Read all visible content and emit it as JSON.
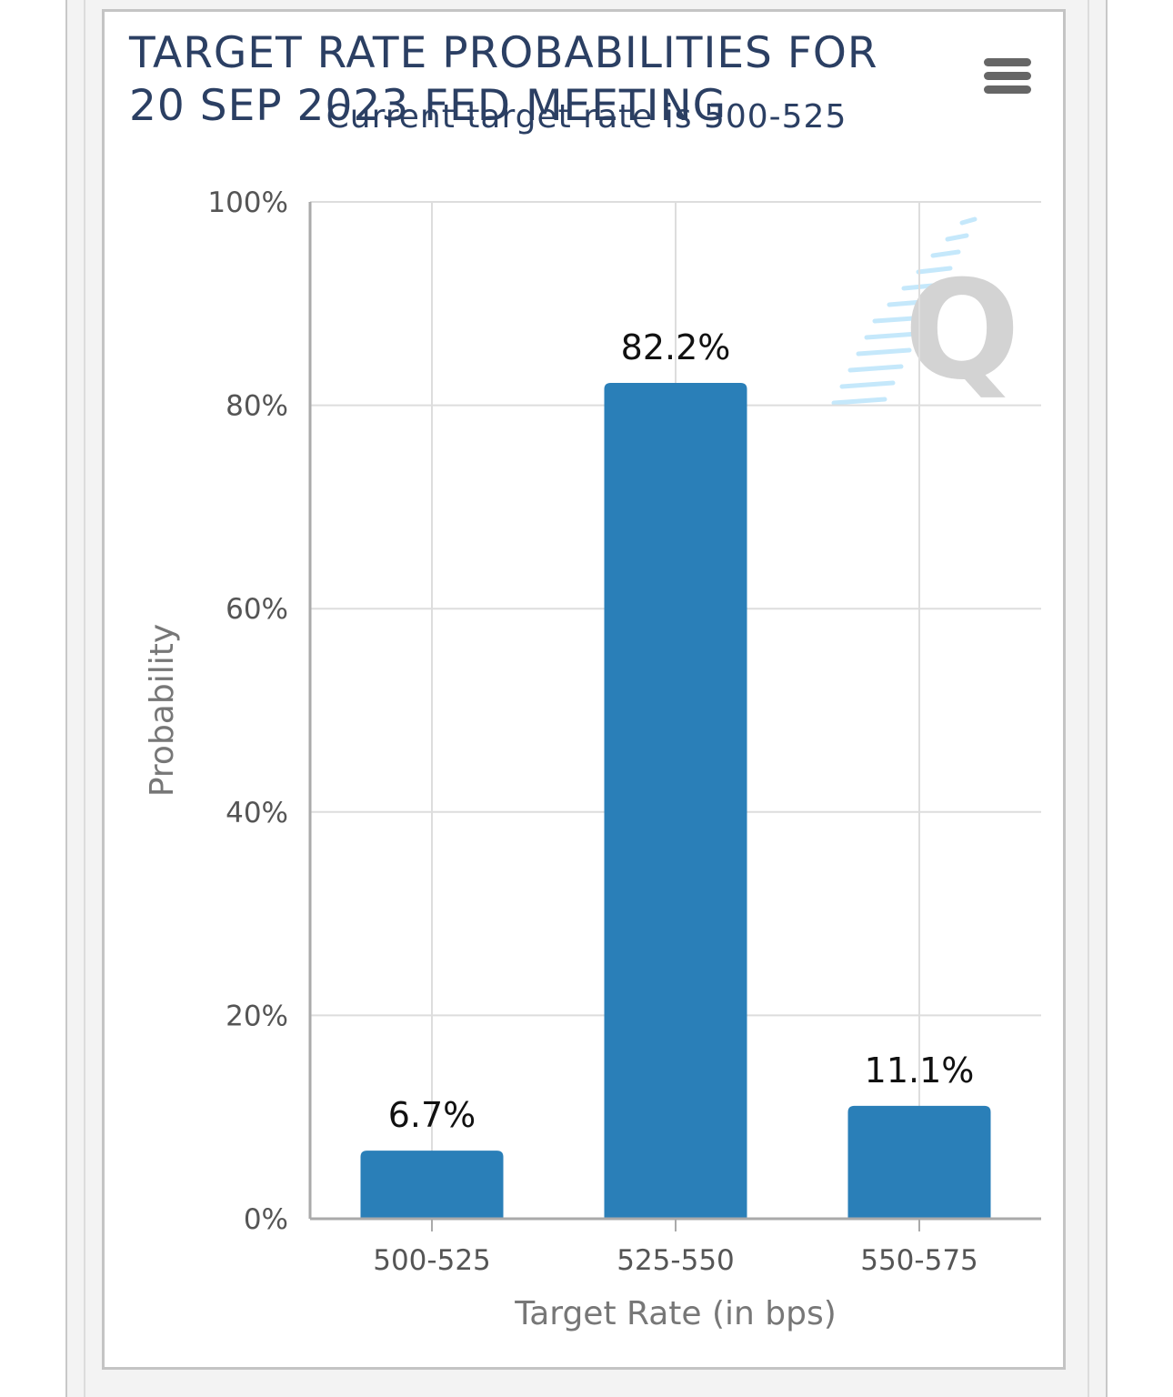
{
  "chart_data": {
    "type": "bar",
    "title": "TARGET RATE PROBABILITIES FOR\n20 SEP 2023 FED MEETING",
    "subtitle": "Current target rate is 500-525",
    "xlabel": "Target Rate (in bps)",
    "ylabel": "Probability",
    "categories": [
      "500-525",
      "525-550",
      "550-575"
    ],
    "values": [
      6.7,
      82.2,
      11.1
    ],
    "data_labels": [
      "6.7%",
      "82.2%",
      "11.1%"
    ],
    "ylim": [
      0,
      100
    ],
    "yticks": [
      0,
      20,
      40,
      60,
      80,
      100
    ],
    "ytick_labels": [
      "0%",
      "20%",
      "40%",
      "60%",
      "80%",
      "100%"
    ],
    "grid": true,
    "bar_color": "#2a7fb8"
  },
  "menu": {
    "icon": "hamburger-menu-icon"
  },
  "watermark": {
    "icon": "quikstrike-q-logo"
  }
}
